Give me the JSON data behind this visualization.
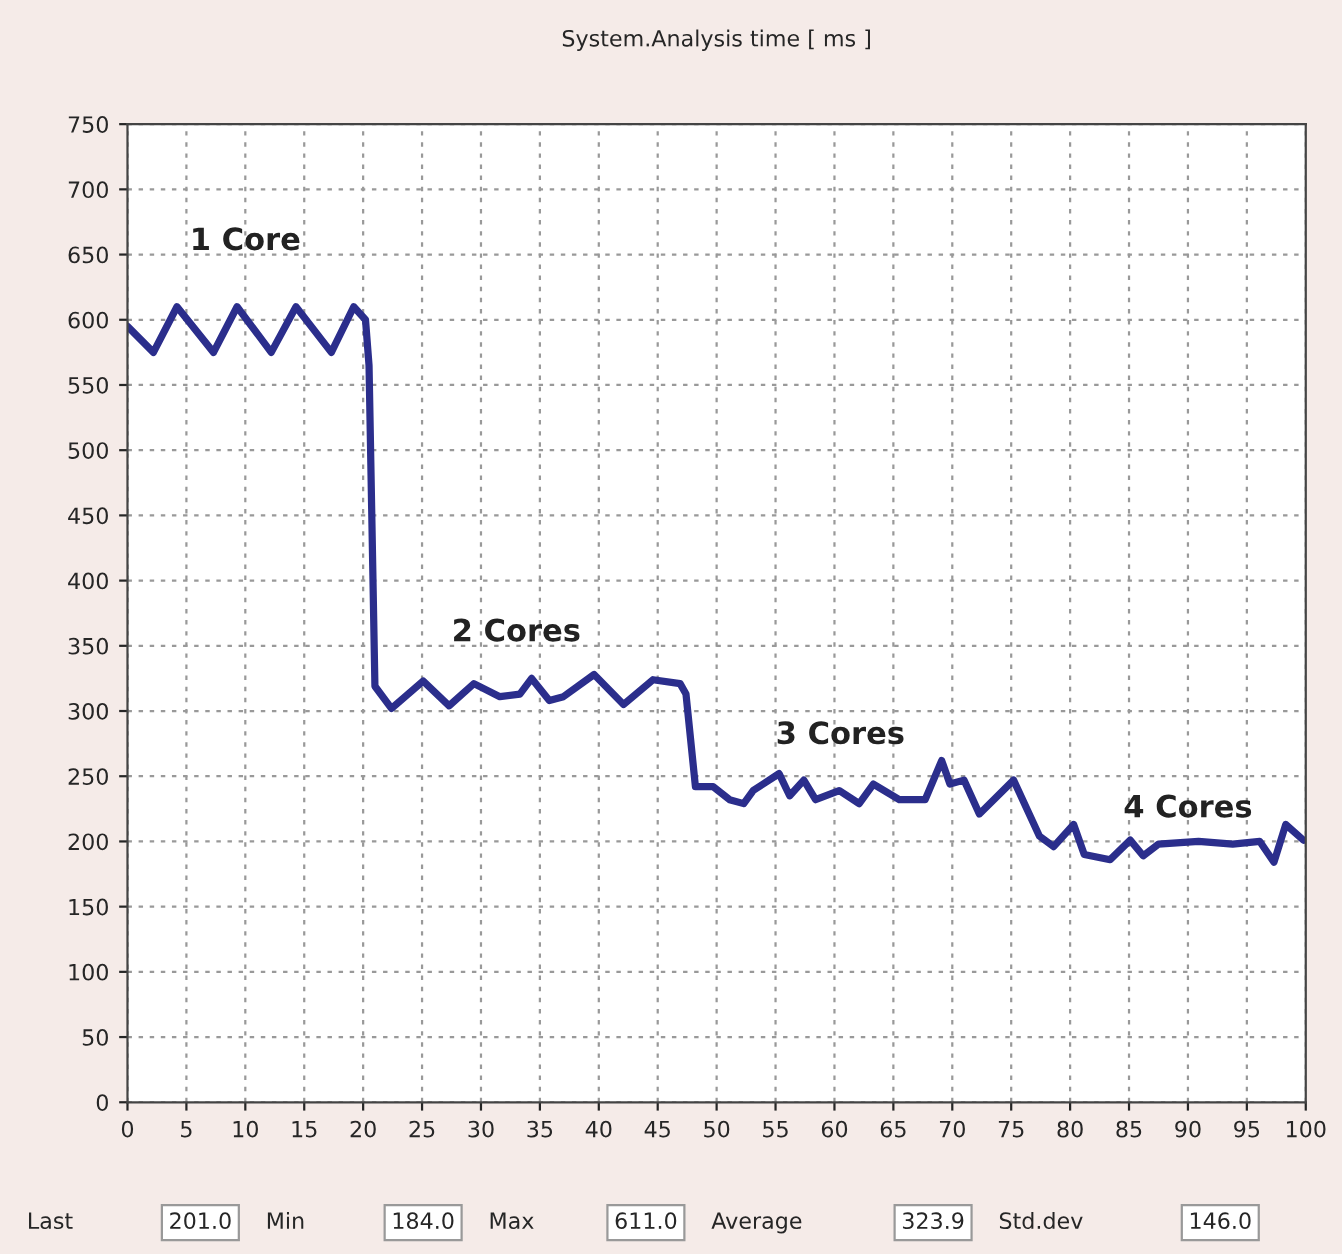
{
  "chart_data": {
    "type": "line",
    "title": "System.Analysis time [ ms ]",
    "x": [
      0,
      2.2,
      4.2,
      7.3,
      9.3,
      12.2,
      14.3,
      17.3,
      19.2,
      20.2,
      20.5,
      21,
      22.4,
      25.1,
      27.3,
      29.4,
      31.6,
      33.3,
      34.3,
      35.8,
      37,
      39.6,
      42.1,
      44.6,
      46.9,
      47.4,
      48.2,
      49.7,
      51.1,
      52.3,
      53.1,
      55.3,
      56.2,
      57.4,
      58.4,
      60.4,
      62.1,
      63.3,
      65.5,
      67.7,
      69.1,
      69.8,
      71,
      72.3,
      75.2,
      77.4,
      78.6,
      80.3,
      81.2,
      83.4,
      85.1,
      86.2,
      87.5,
      90.9,
      93.8,
      96.1,
      97.3,
      98.3,
      99.8
    ],
    "series": [
      {
        "color": "#2b2e8c",
        "values": [
          595,
          575,
          610,
          575,
          610,
          575,
          610,
          575,
          610,
          600,
          565,
          319,
          302,
          323,
          304,
          321,
          311,
          313,
          325,
          308,
          311,
          328,
          305,
          324,
          321,
          313,
          242,
          242,
          232,
          229,
          239,
          252,
          235,
          247,
          232,
          239,
          229,
          244,
          232,
          232,
          262,
          244,
          247,
          221,
          247,
          204,
          196,
          213,
          190,
          186,
          201,
          189,
          198,
          200,
          198,
          200,
          184,
          213,
          201
        ]
      }
    ],
    "xlim": [
      0,
      100
    ],
    "xticks": [
      0,
      5,
      10,
      15,
      20,
      25,
      30,
      35,
      40,
      45,
      50,
      55,
      60,
      65,
      70,
      75,
      80,
      85,
      90,
      95,
      100
    ],
    "ylim": [
      0,
      750
    ],
    "yticks": [
      0,
      50,
      100,
      150,
      200,
      250,
      300,
      350,
      400,
      450,
      500,
      550,
      600,
      650,
      700,
      750
    ],
    "grid": true,
    "marker": "none",
    "line_style": "solid",
    "legend": false,
    "annotations": [
      "1 Core",
      "2 Cores",
      "3 Cores",
      "4 Cores",
      "Last",
      "201.0",
      "Min",
      "184.0",
      "Max",
      "611.0",
      "Average",
      "323.9",
      "Std.dev",
      "146.0"
    ]
  }
}
